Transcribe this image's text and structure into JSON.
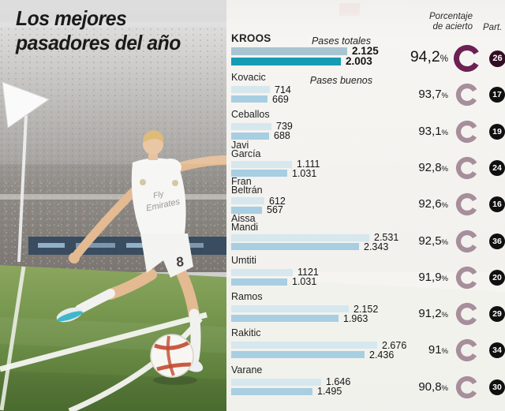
{
  "title": {
    "line1": "Los mejores",
    "line2": "pasadores del año"
  },
  "headers": {
    "porcentaje_line1": "Porcentaje",
    "porcentaje_line2": "de acierto",
    "part": "Part."
  },
  "legend": {
    "pases_totales": "Pases totales",
    "pases_buenos": "Pases buenos"
  },
  "percent_sign": "%",
  "colors": {
    "bar_total": "#d6e7ee",
    "bar_good": "#a8cee2",
    "bar_total_hl": "#a7c4d0",
    "bar_good_hl": "#149cb4",
    "ring": "#a78e9b",
    "ring_hl": "#6d2053",
    "badge": "#101010",
    "badge_hl": "#330d24",
    "panel_bg": "#f6f5f2",
    "title_text": "#1a1a1a"
  },
  "photo": {
    "shirt_text_line1": "Fly",
    "shirt_text_line2": "Emirates",
    "shorts_number": "8"
  },
  "players": [
    {
      "name_lines": [
        "KROOS"
      ],
      "total": 2125,
      "total_label": "2.125",
      "good": 2003,
      "good_label": "2.003",
      "pct": "94,2",
      "part": "26",
      "highlight": true
    },
    {
      "name_lines": [
        "Kovacic"
      ],
      "total": 714,
      "total_label": "714",
      "good": 669,
      "good_label": "669",
      "pct": "93,7",
      "part": "17",
      "highlight": false
    },
    {
      "name_lines": [
        "Ceballos"
      ],
      "total": 739,
      "total_label": "739",
      "good": 688,
      "good_label": "688",
      "pct": "93,1",
      "part": "19",
      "highlight": false
    },
    {
      "name_lines": [
        "Javi",
        "García"
      ],
      "total": 1111,
      "total_label": "1.111",
      "good": 1031,
      "good_label": "1.031",
      "pct": "92,8",
      "part": "24",
      "highlight": false
    },
    {
      "name_lines": [
        "Fran",
        "Beltrán"
      ],
      "total": 612,
      "total_label": "612",
      "good": 567,
      "good_label": "567",
      "pct": "92,6",
      "part": "16",
      "highlight": false
    },
    {
      "name_lines": [
        "Aissa",
        "Mandi"
      ],
      "total": 2531,
      "total_label": "2.531",
      "good": 2343,
      "good_label": "2.343",
      "pct": "92,5",
      "part": "36",
      "highlight": false
    },
    {
      "name_lines": [
        "Umtiti"
      ],
      "total": 1121,
      "total_label": "1121",
      "good": 1031,
      "good_label": "1.031",
      "pct": "91,9",
      "part": "20",
      "highlight": false
    },
    {
      "name_lines": [
        "Ramos"
      ],
      "total": 2152,
      "total_label": "2.152",
      "good": 1963,
      "good_label": "1.963",
      "pct": "91,2",
      "part": "29",
      "highlight": false
    },
    {
      "name_lines": [
        "Rakitic"
      ],
      "total": 2676,
      "total_label": "2.676",
      "good": 2436,
      "good_label": "2.436",
      "pct": "91",
      "part": "34",
      "highlight": false
    },
    {
      "name_lines": [
        "Varane"
      ],
      "total": 1646,
      "total_label": "1.646",
      "good": 1495,
      "good_label": "1.495",
      "pct": "90,8",
      "part": "30",
      "highlight": false
    }
  ],
  "chart_data": {
    "type": "bar",
    "orientation": "horizontal",
    "title": "Los mejores pasadores del año",
    "categories": [
      "Kroos",
      "Kovacic",
      "Ceballos",
      "Javi García",
      "Fran Beltrán",
      "Aissa Mandi",
      "Umtiti",
      "Ramos",
      "Rakitic",
      "Varane"
    ],
    "series": [
      {
        "name": "Pases totales",
        "values": [
          2125,
          714,
          739,
          1111,
          612,
          2531,
          1121,
          2152,
          2676,
          1646
        ]
      },
      {
        "name": "Pases buenos",
        "values": [
          2003,
          669,
          688,
          1031,
          567,
          2343,
          1031,
          1963,
          2436,
          1495
        ]
      },
      {
        "name": "Porcentaje de acierto (%)",
        "values": [
          94.2,
          93.7,
          93.1,
          92.8,
          92.6,
          92.5,
          91.9,
          91.2,
          91.0,
          90.8
        ]
      },
      {
        "name": "Part.",
        "values": [
          26,
          17,
          19,
          24,
          16,
          36,
          20,
          29,
          34,
          30
        ]
      }
    ],
    "xlim": [
      0,
      2800
    ],
    "legend_position": "top",
    "grid": false
  }
}
